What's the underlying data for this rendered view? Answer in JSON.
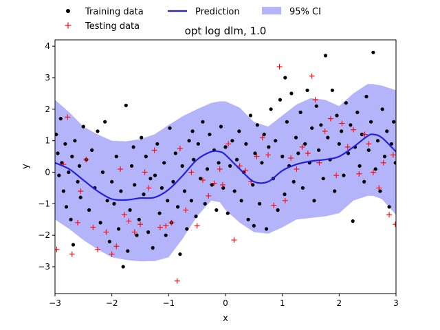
{
  "chart_data": {
    "type": "scatter",
    "title": "opt log dlm, 1.0",
    "xlabel": "x",
    "ylabel": "y",
    "xlim": [
      -3,
      3
    ],
    "ylim": [
      -3.85,
      4.2
    ],
    "xticks": [
      -3,
      -2,
      -1,
      0,
      1,
      2,
      3
    ],
    "yticks": [
      -3,
      -2,
      -1,
      0,
      1,
      2,
      3,
      4
    ],
    "xtick_labels": [
      "−3",
      "−2",
      "−1",
      "0",
      "1",
      "2",
      "3"
    ],
    "ytick_labels": [
      "−3",
      "−2",
      "−1",
      "0",
      "1",
      "2",
      "3",
      "4"
    ],
    "grid": false,
    "legend": {
      "placement": "top, outside plot, 3 columns",
      "entries": [
        {
          "label": "Training data",
          "marker": "dot",
          "color": "#000000"
        },
        {
          "label": "Prediction",
          "marker": "line",
          "color": "#2222dd"
        },
        {
          "label": "95% CI",
          "marker": "patch",
          "color": "#b4b4fa"
        }
      ]
    },
    "colors": {
      "training": "#000000",
      "testing": "#ff0000",
      "prediction": "#2222dd",
      "ci": "#b4b4fa"
    },
    "series": [
      {
        "name": "Prediction",
        "kind": "line",
        "x": [
          -3.0,
          -2.75,
          -2.5,
          -2.25,
          -2.0,
          -1.75,
          -1.5,
          -1.25,
          -1.0,
          -0.75,
          -0.5,
          -0.25,
          -0.1,
          0.0,
          0.25,
          0.5,
          0.75,
          1.0,
          1.25,
          1.5,
          1.75,
          2.0,
          2.25,
          2.5,
          2.6,
          2.75,
          3.0
        ],
        "y": [
          0.3,
          0.1,
          -0.25,
          -0.6,
          -0.85,
          -0.88,
          -0.82,
          -0.8,
          -0.55,
          -0.1,
          0.4,
          0.65,
          0.65,
          0.55,
          0.1,
          -0.3,
          -0.3,
          0.05,
          0.25,
          0.35,
          0.4,
          0.5,
          0.8,
          1.15,
          1.2,
          1.1,
          0.65
        ]
      },
      {
        "name": "95% CI",
        "kind": "band",
        "x": [
          -3.0,
          -2.75,
          -2.5,
          -2.25,
          -2.0,
          -1.75,
          -1.5,
          -1.25,
          -1.0,
          -0.75,
          -0.5,
          -0.25,
          -0.1,
          0.0,
          0.25,
          0.5,
          0.75,
          1.0,
          1.25,
          1.5,
          1.75,
          2.0,
          2.25,
          2.5,
          2.6,
          2.75,
          3.0
        ],
        "lower": [
          -1.5,
          -1.8,
          -2.15,
          -2.45,
          -2.7,
          -2.78,
          -2.83,
          -2.82,
          -2.7,
          -2.1,
          -1.4,
          -0.9,
          -0.95,
          -1.2,
          -1.6,
          -1.9,
          -1.95,
          -1.75,
          -1.5,
          -1.45,
          -1.4,
          -1.3,
          -0.9,
          -0.75,
          -0.75,
          -0.85,
          -1.35
        ],
        "upper": [
          2.3,
          1.9,
          1.45,
          1.2,
          1.0,
          0.98,
          1.05,
          1.2,
          1.5,
          1.78,
          2.0,
          2.2,
          2.25,
          2.25,
          2.05,
          1.6,
          1.45,
          1.8,
          2.15,
          2.35,
          2.3,
          2.1,
          2.5,
          2.8,
          2.8,
          2.75,
          2.6
        ]
      },
      {
        "name": "Training data",
        "kind": "scatter",
        "points": [
          [
            -2.98,
            1.2
          ],
          [
            -2.95,
            0.6
          ],
          [
            -2.93,
            -0.1
          ],
          [
            -2.9,
            1.7
          ],
          [
            -2.88,
            0.3
          ],
          [
            -2.85,
            -0.6
          ],
          [
            -2.82,
            0.9
          ],
          [
            -2.8,
            -1.1
          ],
          [
            -2.76,
            0.0
          ],
          [
            -2.72,
            -1.5
          ],
          [
            -2.7,
            0.5
          ],
          [
            -2.68,
            -2.3
          ],
          [
            -2.65,
            1.0
          ],
          [
            -2.6,
            -0.3
          ],
          [
            -2.57,
            0.2
          ],
          [
            -2.55,
            -0.8
          ],
          [
            -2.5,
            1.45
          ],
          [
            -2.45,
            0.4
          ],
          [
            -2.4,
            -1.2
          ],
          [
            -2.35,
            0.7
          ],
          [
            -2.3,
            -0.5
          ],
          [
            -2.25,
            1.3
          ],
          [
            -2.2,
            -1.6
          ],
          [
            -2.16,
            0.0
          ],
          [
            -2.12,
            1.6
          ],
          [
            -2.08,
            -0.9
          ],
          [
            -2.04,
            -2.2
          ],
          [
            -2.0,
            -0.3
          ],
          [
            -1.96,
            -1.0
          ],
          [
            -1.92,
            0.5
          ],
          [
            -1.88,
            -1.8
          ],
          [
            -1.84,
            -0.6
          ],
          [
            -1.8,
            -3.0
          ],
          [
            -1.75,
            2.12
          ],
          [
            -1.72,
            -2.5
          ],
          [
            -1.68,
            -1.2
          ],
          [
            -1.65,
            0.2
          ],
          [
            -1.6,
            -0.4
          ],
          [
            -1.56,
            -2.0
          ],
          [
            -1.52,
            -1.5
          ],
          [
            -1.48,
            1.1
          ],
          [
            -1.44,
            -0.7
          ],
          [
            -1.4,
            0.5
          ],
          [
            -1.36,
            -1.9
          ],
          [
            -1.32,
            -0.2
          ],
          [
            -1.28,
            -2.4
          ],
          [
            -1.24,
            -0.1
          ],
          [
            -1.2,
            0.9
          ],
          [
            -1.16,
            -1.3
          ],
          [
            -1.12,
            -0.5
          ],
          [
            -1.08,
            0.3
          ],
          [
            -1.05,
            -2.0
          ],
          [
            -1.02,
            -0.9
          ],
          [
            -0.98,
            1.4
          ],
          [
            -0.95,
            -1.6
          ],
          [
            -0.92,
            -0.3
          ],
          [
            -0.88,
            0.6
          ],
          [
            -0.84,
            -1.1
          ],
          [
            -0.8,
            -2.6
          ],
          [
            -0.76,
            0.2
          ],
          [
            -0.72,
            -0.6
          ],
          [
            -0.68,
            -1.8
          ],
          [
            -0.64,
            1.0
          ],
          [
            -0.6,
            -0.9
          ],
          [
            -0.56,
            0.4
          ],
          [
            -0.52,
            -1.4
          ],
          [
            -0.48,
            0.9
          ],
          [
            -0.44,
            -0.2
          ],
          [
            -0.4,
            1.6
          ],
          [
            -0.36,
            -1.0
          ],
          [
            -0.32,
            0.1
          ],
          [
            -0.28,
            1.2
          ],
          [
            -0.24,
            -0.4
          ],
          [
            -0.2,
            0.7
          ],
          [
            -0.16,
            -1.2
          ],
          [
            -0.12,
            0.3
          ],
          [
            -0.08,
            1.45
          ],
          [
            -0.04,
            -0.5
          ],
          [
            0.0,
            0.8
          ],
          [
            0.04,
            -1.3
          ],
          [
            0.08,
            0.2
          ],
          [
            0.12,
            1.0
          ],
          [
            0.16,
            -0.6
          ],
          [
            0.2,
            0.4
          ],
          [
            0.24,
            1.3
          ],
          [
            0.28,
            -0.9
          ],
          [
            0.32,
            0.0
          ],
          [
            0.36,
            0.9
          ],
          [
            0.4,
            -1.5
          ],
          [
            0.44,
            1.8
          ],
          [
            0.48,
            -0.4
          ],
          [
            0.52,
            0.6
          ],
          [
            0.56,
            1.5
          ],
          [
            0.6,
            -1.0
          ],
          [
            0.64,
            0.3
          ],
          [
            0.68,
            1.2
          ],
          [
            0.72,
            -1.8
          ],
          [
            0.76,
            0.8
          ],
          [
            0.8,
            2.0
          ],
          [
            0.84,
            -0.2
          ],
          [
            0.88,
            1.0
          ],
          [
            0.92,
            -1.2
          ],
          [
            0.96,
            2.3
          ],
          [
            1.0,
            0.5
          ],
          [
            1.04,
            -0.7
          ],
          [
            1.08,
            1.6
          ],
          [
            1.12,
            0.2
          ],
          [
            1.16,
            2.5
          ],
          [
            1.2,
            -0.3
          ],
          [
            1.24,
            1.1
          ],
          [
            1.28,
            0.6
          ],
          [
            1.32,
            1.9
          ],
          [
            1.36,
            -0.5
          ],
          [
            1.4,
            0.9
          ],
          [
            1.44,
            2.6
          ],
          [
            1.48,
            0.3
          ],
          [
            1.52,
            1.4
          ],
          [
            1.56,
            -0.9
          ],
          [
            1.6,
            2.1
          ],
          [
            1.64,
            0.7
          ],
          [
            1.68,
            1.5
          ],
          [
            1.72,
            -0.2
          ],
          [
            1.76,
            3.7
          ],
          [
            1.8,
            1.1
          ],
          [
            1.84,
            0.4
          ],
          [
            1.88,
            2.6
          ],
          [
            1.92,
            -0.6
          ],
          [
            1.96,
            1.8
          ],
          [
            2.0,
            0.9
          ],
          [
            2.04,
            1.3
          ],
          [
            2.08,
            -0.1
          ],
          [
            2.12,
            2.2
          ],
          [
            2.16,
            0.6
          ],
          [
            2.2,
            1.5
          ],
          [
            2.24,
            -1.55
          ],
          [
            2.28,
            0.8
          ],
          [
            2.32,
            1.9
          ],
          [
            2.36,
            0.2
          ],
          [
            2.4,
            1.2
          ],
          [
            2.44,
            -0.3
          ],
          [
            2.48,
            2.4
          ],
          [
            2.52,
            0.7
          ],
          [
            2.56,
            1.6
          ],
          [
            2.6,
            3.8
          ],
          [
            2.64,
            0.1
          ],
          [
            2.68,
            1.0
          ],
          [
            2.72,
            -0.6
          ],
          [
            2.76,
            2.0
          ],
          [
            2.8,
            0.5
          ],
          [
            2.84,
            1.3
          ],
          [
            2.88,
            -1.1
          ],
          [
            2.92,
            0.9
          ],
          [
            2.96,
            1.6
          ],
          [
            2.99,
            0.3
          ],
          [
            -1.62,
            0.8
          ],
          [
            -0.58,
            1.3
          ],
          [
            0.5,
            -1.7
          ],
          [
            1.05,
            3.0
          ]
        ]
      },
      {
        "name": "Testing data",
        "kind": "scatter",
        "points": [
          [
            -2.97,
            -2.45
          ],
          [
            -2.85,
            0.25
          ],
          [
            -2.78,
            1.75
          ],
          [
            -2.7,
            -2.6
          ],
          [
            -2.6,
            -1.6
          ],
          [
            -2.55,
            -0.6
          ],
          [
            -2.45,
            0.4
          ],
          [
            -2.33,
            -1.75
          ],
          [
            -2.25,
            -2.45
          ],
          [
            -2.1,
            -1.9
          ],
          [
            -2.0,
            -2.6
          ],
          [
            -1.92,
            -2.35
          ],
          [
            -1.85,
            0.1
          ],
          [
            -1.78,
            -1.35
          ],
          [
            -1.7,
            -1.55
          ],
          [
            -1.6,
            -1.9
          ],
          [
            -1.5,
            -1.65
          ],
          [
            -1.42,
            0.0
          ],
          [
            -1.35,
            -0.5
          ],
          [
            -1.25,
            0.7
          ],
          [
            -1.15,
            -1.75
          ],
          [
            -1.05,
            -1.7
          ],
          [
            -0.95,
            -1.6
          ],
          [
            -0.85,
            -3.45
          ],
          [
            -0.8,
            0.75
          ],
          [
            -0.7,
            -1.2
          ],
          [
            -0.6,
            0.0
          ],
          [
            -0.5,
            -1.7
          ],
          [
            -0.4,
            -0.25
          ],
          [
            -0.3,
            -0.75
          ],
          [
            -0.2,
            -0.35
          ],
          [
            -0.1,
            0.1
          ],
          [
            -0.05,
            -0.4
          ],
          [
            0.05,
            0.9
          ],
          [
            0.15,
            -2.15
          ],
          [
            0.25,
            0.2
          ],
          [
            0.35,
            0.05
          ],
          [
            0.45,
            -0.3
          ],
          [
            0.55,
            0.5
          ],
          [
            0.65,
            1.1
          ],
          [
            0.75,
            0.55
          ],
          [
            0.85,
            -1.05
          ],
          [
            0.95,
            3.35
          ],
          [
            1.05,
            -0.9
          ],
          [
            1.15,
            0.45
          ],
          [
            1.25,
            0.1
          ],
          [
            1.35,
            0.8
          ],
          [
            1.45,
            0.6
          ],
          [
            1.52,
            3.05
          ],
          [
            1.58,
            2.3
          ],
          [
            1.65,
            0.3
          ],
          [
            1.75,
            1.3
          ],
          [
            1.85,
            1.7
          ],
          [
            1.95,
            -0.1
          ],
          [
            2.05,
            1.55
          ],
          [
            2.15,
            0.8
          ],
          [
            2.25,
            1.35
          ],
          [
            2.35,
            -0.05
          ],
          [
            2.45,
            1.2
          ],
          [
            2.52,
            0.9
          ],
          [
            2.6,
            0.0
          ],
          [
            2.7,
            -0.5
          ],
          [
            2.78,
            0.3
          ],
          [
            2.88,
            -1.35
          ],
          [
            2.95,
            0.55
          ],
          [
            2.99,
            -1.65
          ]
        ]
      }
    ]
  }
}
